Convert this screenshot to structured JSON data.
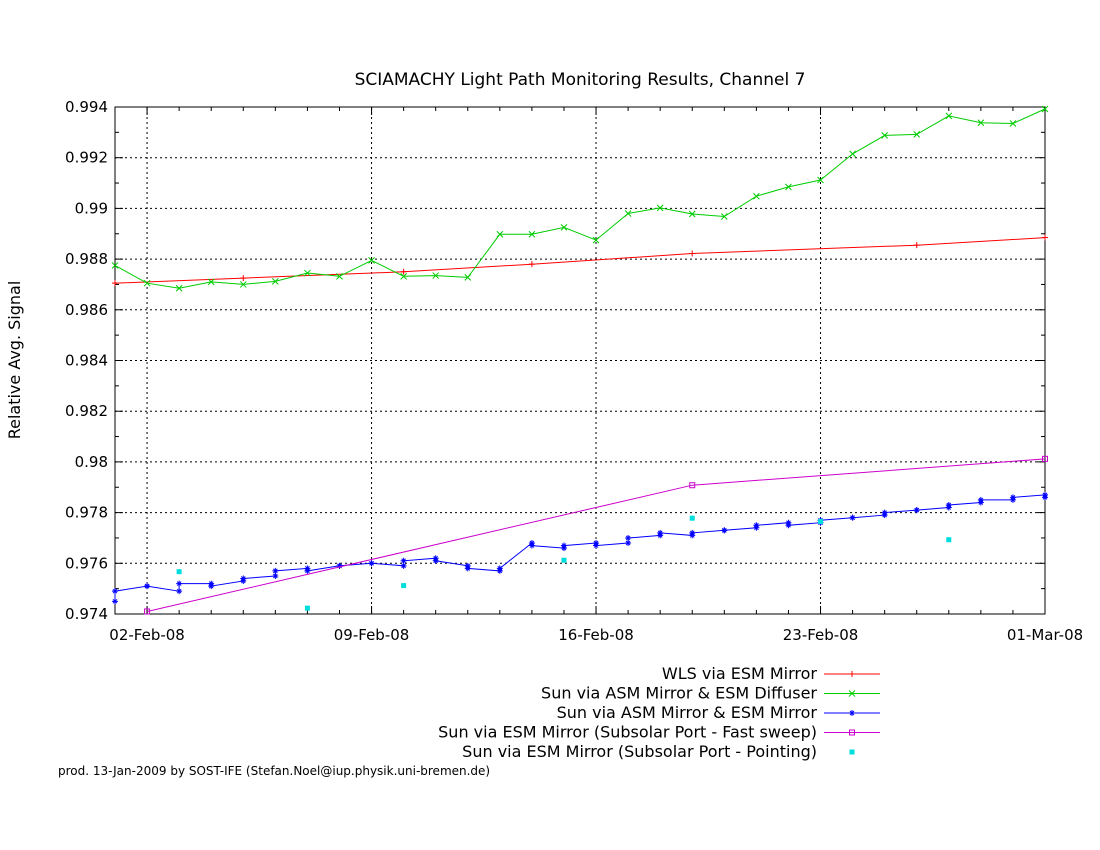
{
  "chart_data": {
    "type": "line",
    "title": "SCIAMACHY Light Path Monitoring Results, Channel 7",
    "xlabel": "",
    "ylabel": "Relative Avg. Signal",
    "x_type": "date",
    "xlim": [
      "2008-02-01",
      "2008-03-01"
    ],
    "ylim": [
      0.974,
      0.994
    ],
    "x_ticks": [
      {
        "date": "2008-02-02",
        "label": "02-Feb-08"
      },
      {
        "date": "2008-02-09",
        "label": "09-Feb-08"
      },
      {
        "date": "2008-02-16",
        "label": "16-Feb-08"
      },
      {
        "date": "2008-02-23",
        "label": "23-Feb-08"
      },
      {
        "date": "2008-03-01",
        "label": "01-Mar-08"
      }
    ],
    "y_ticks": [
      "0.974",
      "0.976",
      "0.978",
      "0.98",
      "0.982",
      "0.984",
      "0.986",
      "0.988",
      "0.99",
      "0.992",
      "0.994"
    ],
    "grid": true,
    "legend_position": "below",
    "series": [
      {
        "name": "WLS via ESM Mirror",
        "color": "#ff0000",
        "marker": "plus",
        "points": [
          [
            "2008-02-01",
            0.98705
          ],
          [
            "2008-02-05",
            0.98725
          ],
          [
            "2008-02-10",
            0.9875
          ],
          [
            "2008-02-14",
            0.9878
          ],
          [
            "2008-02-19",
            0.98822
          ],
          [
            "2008-02-26",
            0.98855
          ],
          [
            "2008-03-01",
            0.98885
          ]
        ]
      },
      {
        "name": "Sun via ASM Mirror & ESM Diffuser",
        "color": "#00cc00",
        "marker": "x",
        "points": [
          [
            "2008-02-01",
            0.98775
          ],
          [
            "2008-02-02",
            0.98705
          ],
          [
            "2008-02-03",
            0.98685
          ],
          [
            "2008-02-04",
            0.9871
          ],
          [
            "2008-02-05",
            0.987
          ],
          [
            "2008-02-06",
            0.98712
          ],
          [
            "2008-02-07",
            0.98745
          ],
          [
            "2008-02-08",
            0.98732
          ],
          [
            "2008-02-09",
            0.98795
          ],
          [
            "2008-02-10",
            0.98732
          ],
          [
            "2008-02-11",
            0.98735
          ],
          [
            "2008-02-12",
            0.98728
          ],
          [
            "2008-02-13",
            0.98898
          ],
          [
            "2008-02-14",
            0.98898
          ],
          [
            "2008-02-15",
            0.98925
          ],
          [
            "2008-02-16",
            0.98875
          ],
          [
            "2008-02-17",
            0.9898
          ],
          [
            "2008-02-18",
            0.99002
          ],
          [
            "2008-02-19",
            0.98978
          ],
          [
            "2008-02-20",
            0.98968
          ],
          [
            "2008-02-21",
            0.99048
          ],
          [
            "2008-02-22",
            0.99085
          ],
          [
            "2008-02-23",
            0.99112
          ],
          [
            "2008-02-24",
            0.99215
          ],
          [
            "2008-02-25",
            0.99288
          ],
          [
            "2008-02-26",
            0.99292
          ],
          [
            "2008-02-27",
            0.99365
          ],
          [
            "2008-02-28",
            0.99338
          ],
          [
            "2008-02-29",
            0.99335
          ],
          [
            "2008-03-01",
            0.99392
          ]
        ]
      },
      {
        "name": "Sun via ASM Mirror & ESM Mirror",
        "color": "#0000ff",
        "marker": "star",
        "points": [
          [
            "2008-02-01",
            0.9745
          ],
          [
            "2008-02-01",
            0.9749
          ],
          [
            "2008-02-02",
            0.9751
          ],
          [
            "2008-02-02",
            0.9751
          ],
          [
            "2008-02-03",
            0.9749
          ],
          [
            "2008-02-03",
            0.9752
          ],
          [
            "2008-02-04",
            0.9752
          ],
          [
            "2008-02-04",
            0.9751
          ],
          [
            "2008-02-05",
            0.9753
          ],
          [
            "2008-02-05",
            0.9754
          ],
          [
            "2008-02-06",
            0.9755
          ],
          [
            "2008-02-06",
            0.9757
          ],
          [
            "2008-02-07",
            0.9758
          ],
          [
            "2008-02-07",
            0.9757
          ],
          [
            "2008-02-08",
            0.9759
          ],
          [
            "2008-02-08",
            0.9759
          ],
          [
            "2008-02-09",
            0.976
          ],
          [
            "2008-02-09",
            0.976
          ],
          [
            "2008-02-10",
            0.9759
          ],
          [
            "2008-02-10",
            0.9761
          ],
          [
            "2008-02-11",
            0.9762
          ],
          [
            "2008-02-11",
            0.9761
          ],
          [
            "2008-02-12",
            0.9759
          ],
          [
            "2008-02-12",
            0.9758
          ],
          [
            "2008-02-13",
            0.9757
          ],
          [
            "2008-02-13",
            0.9758
          ],
          [
            "2008-02-14",
            0.9768
          ],
          [
            "2008-02-14",
            0.9767
          ],
          [
            "2008-02-15",
            0.9766
          ],
          [
            "2008-02-15",
            0.9767
          ],
          [
            "2008-02-16",
            0.9768
          ],
          [
            "2008-02-16",
            0.9767
          ],
          [
            "2008-02-17",
            0.9768
          ],
          [
            "2008-02-17",
            0.977
          ],
          [
            "2008-02-18",
            0.9771
          ],
          [
            "2008-02-18",
            0.9772
          ],
          [
            "2008-02-19",
            0.9771
          ],
          [
            "2008-02-19",
            0.9772
          ],
          [
            "2008-02-20",
            0.9773
          ],
          [
            "2008-02-20",
            0.9773
          ],
          [
            "2008-02-21",
            0.9774
          ],
          [
            "2008-02-21",
            0.9775
          ],
          [
            "2008-02-22",
            0.9776
          ],
          [
            "2008-02-22",
            0.9775
          ],
          [
            "2008-02-23",
            0.9776
          ],
          [
            "2008-02-23",
            0.9777
          ],
          [
            "2008-02-24",
            0.9778
          ],
          [
            "2008-02-24",
            0.9778
          ],
          [
            "2008-02-25",
            0.9779
          ],
          [
            "2008-02-25",
            0.978
          ],
          [
            "2008-02-26",
            0.9781
          ],
          [
            "2008-02-26",
            0.9781
          ],
          [
            "2008-02-27",
            0.9782
          ],
          [
            "2008-02-27",
            0.9783
          ],
          [
            "2008-02-28",
            0.9784
          ],
          [
            "2008-02-28",
            0.9785
          ],
          [
            "2008-02-29",
            0.9785
          ],
          [
            "2008-02-29",
            0.9786
          ],
          [
            "2008-03-01",
            0.9787
          ],
          [
            "2008-03-01",
            0.9786
          ]
        ]
      },
      {
        "name": "Sun via ESM Mirror (Subsolar Port - Fast sweep)",
        "color": "#cc00cc",
        "marker": "square",
        "points": [
          [
            "2008-02-02",
            0.9741
          ],
          [
            "2008-02-19",
            0.97908
          ],
          [
            "2008-03-01",
            0.98012
          ]
        ]
      },
      {
        "name": "Sun via ESM Mirror (Subsolar Port - Pointing)",
        "color": "#00dddd",
        "marker": "dot",
        "points": [
          [
            "2008-02-03",
            0.97567
          ],
          [
            "2008-02-07",
            0.97423
          ],
          [
            "2008-02-10",
            0.97512
          ],
          [
            "2008-02-15",
            0.97612
          ],
          [
            "2008-02-19",
            0.97778
          ],
          [
            "2008-02-23",
            0.97765
          ],
          [
            "2008-02-27",
            0.97693
          ]
        ]
      }
    ]
  },
  "footer": {
    "credit": "prod. 13-Jan-2009 by SOST-IFE (Stefan.Noel@iup.physik.uni-bremen.de)"
  }
}
